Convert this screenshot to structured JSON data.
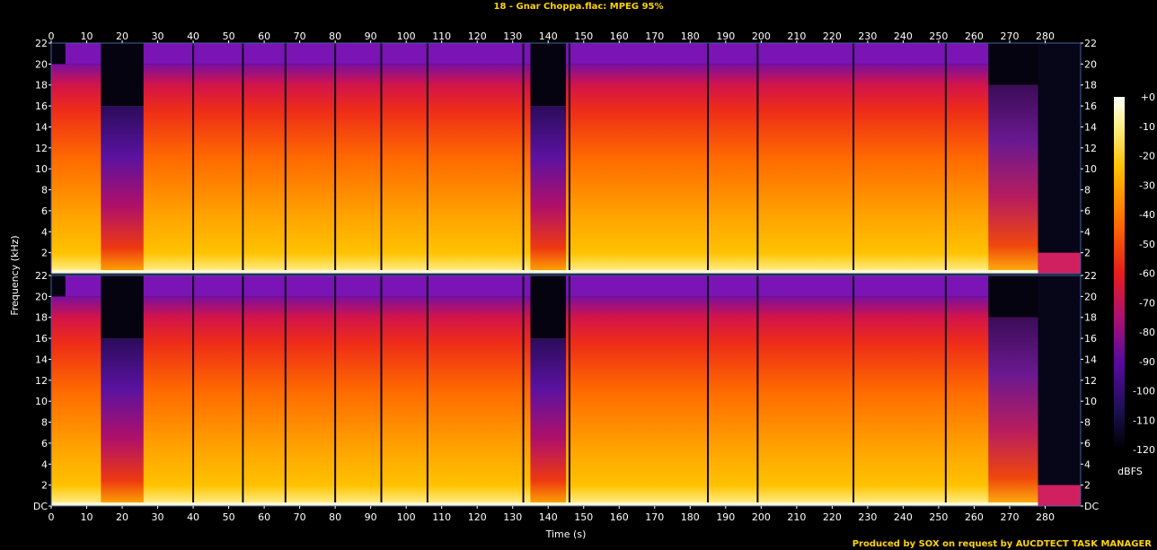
{
  "chart_data": {
    "type": "heatmap",
    "title": "18 - Gnar Choppa.flac: MPEG 95%",
    "xlabel": "Time (s)",
    "ylabel": "Frequency (kHz)",
    "xlim": [
      0,
      290
    ],
    "ylim": [
      0,
      22
    ],
    "x_ticks": [
      0,
      10,
      20,
      30,
      40,
      50,
      60,
      70,
      80,
      90,
      100,
      110,
      120,
      130,
      140,
      150,
      160,
      170,
      180,
      190,
      200,
      210,
      220,
      230,
      240,
      250,
      260,
      270,
      280
    ],
    "y_ticks": [
      "DC",
      "2",
      "4",
      "6",
      "8",
      "10",
      "12",
      "14",
      "16",
      "18",
      "20",
      "22"
    ],
    "channels": 2,
    "colorbar": {
      "label": "dBFS",
      "ticks": [
        "+0",
        "-10",
        "-20",
        "-30",
        "-40",
        "-50",
        "-60",
        "-70",
        "-80",
        "-90",
        "-100",
        "-110",
        "-120"
      ],
      "range": [
        -120,
        0
      ]
    },
    "lowpass_cutoff_khz": {
      "full_band_sections": 20,
      "quiet_sections": 16
    },
    "credit": "Produced by SOX on request by AUCDTECT TASK MANAGER"
  }
}
